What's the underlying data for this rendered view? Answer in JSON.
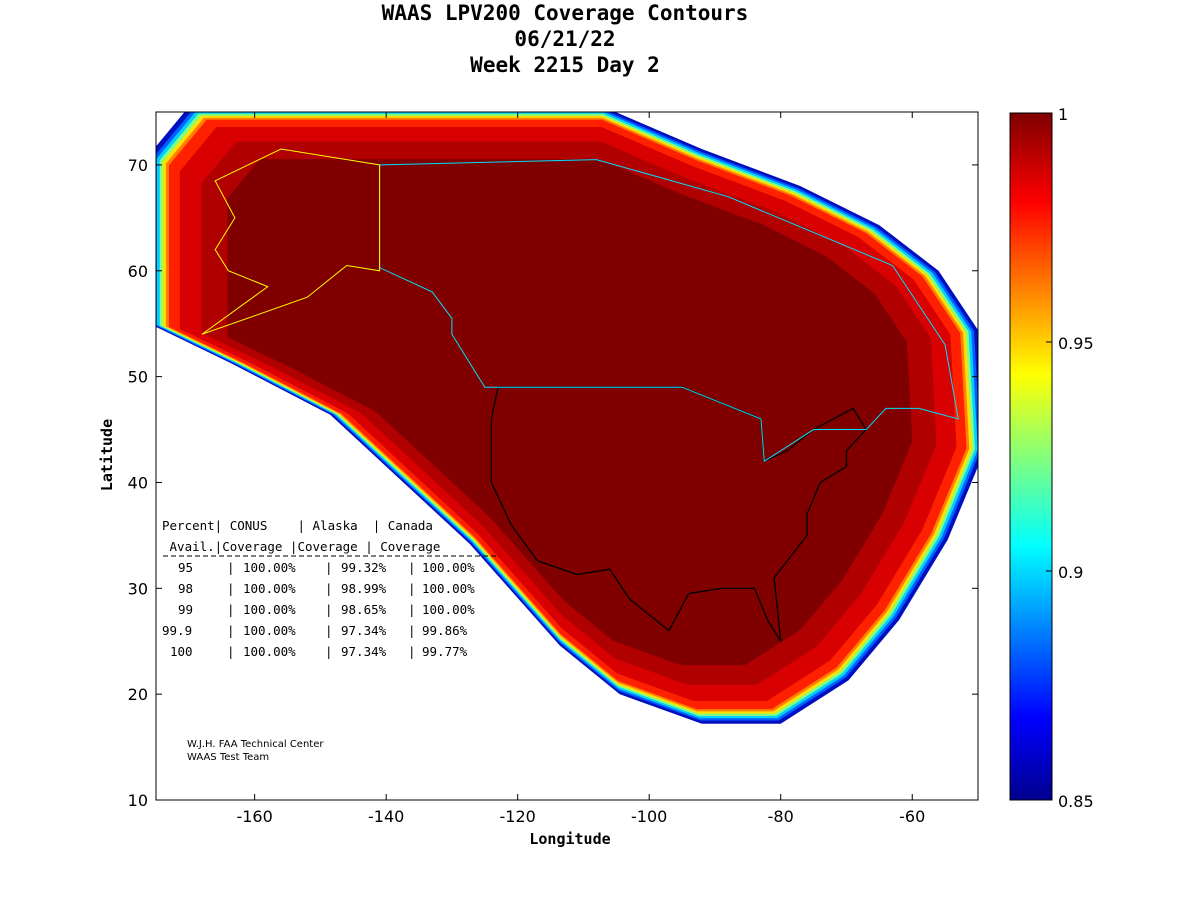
{
  "chart_data": {
    "type": "heatmap",
    "title": [
      "WAAS LPV200 Coverage Contours",
      "06/21/22",
      "Week 2215 Day 2"
    ],
    "xlabel": "Longitude",
    "ylabel": "Latitude",
    "xlim": [
      -175,
      -50
    ],
    "ylim": [
      10,
      75
    ],
    "xticks": [
      -160,
      -140,
      -120,
      -100,
      -80,
      -60
    ],
    "yticks": [
      10,
      20,
      30,
      40,
      50,
      60,
      70
    ],
    "colorbar": {
      "range": [
        0.85,
        1
      ],
      "ticks": [
        "0.85",
        "0.9",
        "0.95",
        "1"
      ],
      "colormap": "jet"
    },
    "table": {
      "header1": "Percent| CONUS    | Alaska  | Canada",
      "header2": " Avail.|Coverage |Coverage | Coverage",
      "rows": [
        {
          "percent": "95",
          "conus": "100.00%",
          "alaska": "99.32%",
          "canada": "100.00%"
        },
        {
          "percent": "98",
          "conus": "100.00%",
          "alaska": "98.99%",
          "canada": "100.00%"
        },
        {
          "percent": "99",
          "conus": "100.00%",
          "alaska": "98.65%",
          "canada": "100.00%"
        },
        {
          "percent": "99.9",
          "conus": "100.00%",
          "alaska": "97.34%",
          "canada": "99.86%"
        },
        {
          "percent": "100",
          "conus": "100.00%",
          "alaska": "97.34%",
          "canada": "99.77%"
        }
      ]
    },
    "credits": [
      "W.J.H. FAA Technical Center",
      "WAAS Test Team"
    ]
  }
}
